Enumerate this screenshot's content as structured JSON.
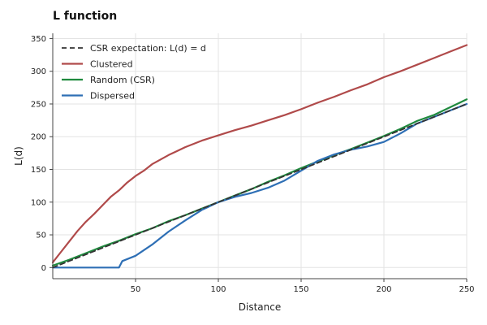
{
  "chart_data": {
    "type": "line",
    "title": "L function",
    "xlabel": "Distance",
    "ylabel": "L(d)",
    "xlim": [
      0,
      250
    ],
    "ylim": [
      -17,
      358
    ],
    "xticks": [
      50,
      100,
      150,
      200,
      250
    ],
    "yticks": [
      0,
      50,
      100,
      150,
      200,
      250,
      300,
      350
    ],
    "grid": true,
    "legend_position": "top-left",
    "series": [
      {
        "name": "CSR expectation: L(d) = d",
        "color": "#333333",
        "style": "dashed",
        "x": [
          0,
          250
        ],
        "y": [
          0,
          250
        ]
      },
      {
        "name": "Clustered",
        "color": "#b04a4a",
        "style": "solid",
        "x": [
          0,
          5,
          10,
          15,
          20,
          25,
          30,
          35,
          40,
          45,
          50,
          55,
          60,
          65,
          70,
          75,
          80,
          90,
          100,
          110,
          120,
          130,
          140,
          150,
          160,
          170,
          180,
          190,
          200,
          210,
          220,
          230,
          240,
          250
        ],
        "y": [
          8,
          24,
          40,
          56,
          70,
          82,
          95,
          108,
          118,
          130,
          140,
          148,
          158,
          165,
          172,
          178,
          184,
          194,
          202,
          210,
          217,
          225,
          233,
          242,
          252,
          261,
          271,
          280,
          291,
          300,
          310,
          320,
          330,
          340
        ]
      },
      {
        "name": "Random (CSR)",
        "color": "#1f8a3e",
        "style": "solid",
        "x": [
          0,
          10,
          20,
          30,
          40,
          50,
          60,
          70,
          80,
          90,
          100,
          110,
          120,
          130,
          140,
          150,
          160,
          170,
          180,
          190,
          200,
          210,
          220,
          230,
          240,
          250
        ],
        "y": [
          3,
          12,
          22,
          32,
          41,
          51,
          60,
          71,
          80,
          90,
          100,
          110,
          120,
          131,
          141,
          152,
          162,
          172,
          181,
          191,
          201,
          212,
          224,
          233,
          245,
          257
        ]
      },
      {
        "name": "Dispersed",
        "color": "#2e6fb5",
        "style": "solid",
        "x": [
          0,
          10,
          20,
          30,
          40,
          42,
          50,
          60,
          70,
          80,
          90,
          100,
          110,
          120,
          130,
          140,
          150,
          160,
          170,
          180,
          190,
          200,
          210,
          220,
          230,
          240,
          250
        ],
        "y": [
          0,
          0,
          0,
          0,
          0,
          10,
          18,
          35,
          55,
          72,
          88,
          100,
          108,
          114,
          122,
          133,
          148,
          163,
          173,
          180,
          185,
          192,
          205,
          220,
          230,
          240,
          250
        ]
      }
    ]
  }
}
